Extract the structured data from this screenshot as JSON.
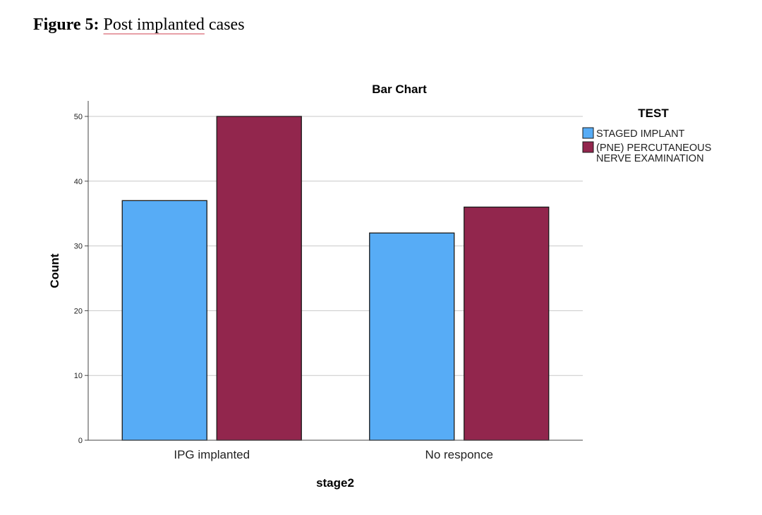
{
  "caption": {
    "label": "Figure 5:",
    "text_underlined": "Post implanted",
    "text_rest": "cases"
  },
  "chart_data": {
    "type": "bar",
    "title": "Bar Chart",
    "xlabel": "stage2",
    "ylabel": "Count",
    "categories": [
      "IPG implanted",
      "No responce"
    ],
    "ylim": [
      0,
      50
    ],
    "yticks": [
      0,
      10,
      20,
      30,
      40,
      50
    ],
    "grid": true,
    "legend": {
      "title": "TEST",
      "placement": "top-right",
      "entries": [
        {
          "lines": [
            "STAGED  IMPLANT"
          ]
        },
        {
          "lines": [
            "(PNE) PERCUTANEOUS",
            "NERVE EXAMINATION"
          ]
        }
      ]
    },
    "series": [
      {
        "name": "STAGED  IMPLANT",
        "values": [
          37,
          32
        ],
        "color": "#57acf6"
      },
      {
        "name": "(PNE) PERCUTANEOUS NERVE EXAMINATION",
        "values": [
          50,
          36
        ],
        "color": "#92264d"
      }
    ]
  }
}
